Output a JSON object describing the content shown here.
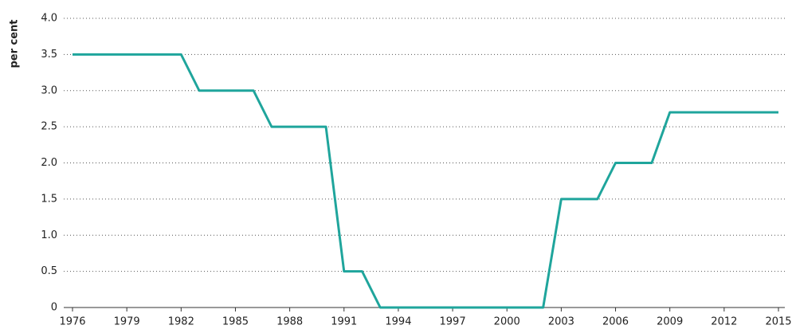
{
  "chart_data": {
    "type": "line",
    "y_label": "per cent",
    "x": [
      1976,
      1982,
      1983,
      1986,
      1987,
      1990,
      1991,
      1992,
      1993,
      2002,
      2003,
      2005,
      2006,
      2008,
      2009,
      2015
    ],
    "series": [
      {
        "color": "#1fa59c",
        "values": [
          3.5,
          3.5,
          3.0,
          3.0,
          2.5,
          2.5,
          0.5,
          0.5,
          0,
          0,
          1.5,
          1.5,
          2.0,
          2.0,
          2.7,
          2.7
        ]
      }
    ],
    "xlim": [
      1976,
      2015
    ],
    "xticks": [
      1976,
      1979,
      1982,
      1985,
      1988,
      1991,
      1994,
      1997,
      2000,
      2003,
      2006,
      2009,
      2012,
      2015
    ],
    "ylim": [
      0,
      4
    ],
    "yticks": [
      0,
      0.5,
      {
        "value": 1,
        "label": "1.0"
      },
      1.5,
      {
        "value": 2,
        "label": "2.0"
      },
      2.5,
      {
        "value": 3,
        "label": "3.0"
      },
      3.5,
      {
        "value": 4,
        "label": "4.0"
      }
    ],
    "grid": true
  }
}
